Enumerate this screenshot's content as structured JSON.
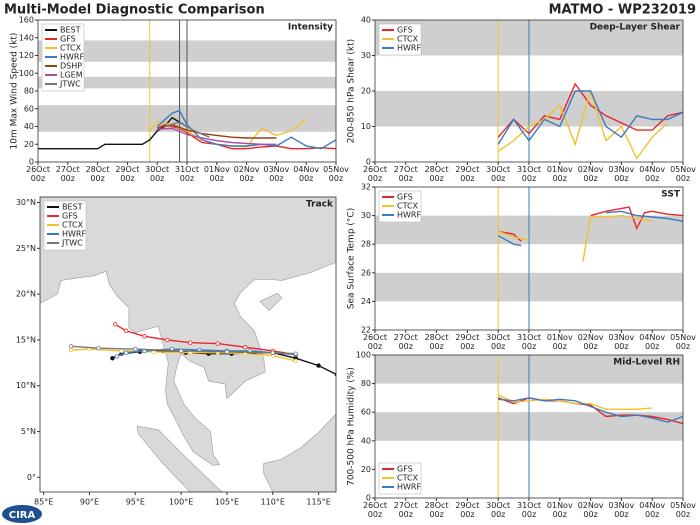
{
  "title": "Multi-Model Diagnostic Comparison",
  "storm": "MATMO - WP232019",
  "logo": "CIRA",
  "chart_data": [
    {
      "type": "line",
      "title": "Intensity",
      "ylabel": "10m Max Wind Speed (kt)",
      "xlim": [
        "26Oct 00z",
        "05Nov 00z"
      ],
      "xticks": [
        "26Oct 00z",
        "27Oct 00z",
        "28Oct 00z",
        "29Oct 00z",
        "30Oct 00z",
        "31Oct 00z",
        "01Nov 00z",
        "02Nov 00z",
        "03Nov 00z",
        "04Nov 00z",
        "05Nov 00z"
      ],
      "ylim": [
        0,
        160
      ],
      "yticks": [
        0,
        20,
        40,
        60,
        80,
        100,
        120,
        140,
        160
      ],
      "bands": [
        [
          34,
          64
        ],
        [
          83,
          96
        ],
        [
          113,
          137
        ]
      ],
      "legend": "upper left",
      "vlines": [
        {
          "x": "29Oct 18z",
          "color": "#f2c12e"
        },
        {
          "x": "30Oct 18z",
          "color": "#555555"
        },
        {
          "x": "31Oct 00z",
          "color": "#555555"
        }
      ],
      "series": [
        {
          "name": "BEST",
          "color": "#111111",
          "x": [
            "26Oct 00z",
            "27Oct 00z",
            "28Oct 00z",
            "28Oct 06z",
            "29Oct 12z",
            "29Oct 18z",
            "30Oct 00z",
            "30Oct 06z",
            "30Oct 12z",
            "30Oct 18z",
            "31Oct 00z"
          ],
          "values": [
            15,
            15,
            15,
            20,
            20,
            25,
            35,
            40,
            50,
            45,
            40
          ]
        },
        {
          "name": "GFS",
          "color": "#e8262a",
          "x": [
            "30Oct 00z",
            "30Oct 06z",
            "30Oct 12z",
            "30Oct 18z",
            "31Oct 00z",
            "31Oct 12z",
            "01Nov 00z",
            "01Nov 12z",
            "02Nov 00z",
            "02Nov 12z",
            "03Nov 00z",
            "03Nov 12z",
            "04Nov 00z",
            "04Nov 12z",
            "05Nov 00z"
          ],
          "values": [
            38,
            42,
            40,
            38,
            33,
            22,
            20,
            15,
            15,
            17,
            18,
            15,
            15,
            16,
            15
          ]
        },
        {
          "name": "CTCX",
          "color": "#f2c12e",
          "x": [
            "29Oct 18z",
            "30Oct 00z",
            "30Oct 12z",
            "31Oct 00z",
            "31Oct 12z",
            "01Nov 00z",
            "01Nov 12z",
            "02Nov 00z",
            "02Nov 12z",
            "03Nov 00z",
            "03Nov 12z",
            "04Nov 00z"
          ],
          "values": [
            35,
            45,
            42,
            35,
            25,
            20,
            18,
            17,
            38,
            30,
            35,
            48
          ]
        },
        {
          "name": "HWRF",
          "color": "#3b7bbf",
          "x": [
            "30Oct 00z",
            "30Oct 12z",
            "30Oct 18z",
            "31Oct 00z",
            "31Oct 12z",
            "01Nov 00z",
            "01Nov 12z",
            "02Nov 00z",
            "02Nov 12z",
            "03Nov 00z",
            "03Nov 12z",
            "04Nov 00z",
            "04Nov 12z",
            "05Nov 00z"
          ],
          "values": [
            40,
            55,
            58,
            42,
            25,
            20,
            18,
            18,
            20,
            18,
            28,
            18,
            15,
            25
          ]
        },
        {
          "name": "DSHP",
          "color": "#8b4513",
          "x": [
            "30Oct 00z",
            "30Oct 12z",
            "31Oct 00z",
            "31Oct 12z",
            "01Nov 00z",
            "01Nov 12z",
            "02Nov 00z",
            "02Nov 12z",
            "03Nov 00z"
          ],
          "values": [
            38,
            42,
            36,
            32,
            30,
            28,
            27,
            27,
            27
          ]
        },
        {
          "name": "LGEM",
          "color": "#b04aa0",
          "x": [
            "30Oct 00z",
            "30Oct 12z",
            "31Oct 00z",
            "31Oct 12z",
            "01Nov 00z",
            "01Nov 12z",
            "02Nov 00z",
            "02Nov 12z",
            "03Nov 00z"
          ],
          "values": [
            37,
            38,
            31,
            27,
            24,
            22,
            21,
            20,
            20
          ]
        },
        {
          "name": "JTWC",
          "color": "#777777",
          "x": [
            "30Oct 06z",
            "30Oct 18z",
            "31Oct 06z",
            "31Oct 18z"
          ],
          "values": [
            40,
            45,
            35,
            28
          ]
        }
      ]
    },
    {
      "type": "track",
      "title": "Track",
      "xlim": [
        84.6,
        116.9
      ],
      "ylim": [
        -1.6,
        30.6
      ],
      "legend": "upper left",
      "xticks": [
        {
          "value": 85,
          "label": "85°E"
        },
        {
          "value": 90,
          "label": "90°E"
        },
        {
          "value": 95,
          "label": "95°E"
        },
        {
          "value": 100,
          "label": "100°E"
        },
        {
          "value": 105,
          "label": "105°E"
        },
        {
          "value": 110,
          "label": "110°E"
        },
        {
          "value": 115,
          "label": "115°E"
        }
      ],
      "yticks": [
        {
          "value": 0,
          "label": "0°"
        },
        {
          "value": 5,
          "label": "5°N"
        },
        {
          "value": 10,
          "label": "10°N"
        },
        {
          "value": 15,
          "label": "15°N"
        },
        {
          "value": 20,
          "label": "20°N"
        },
        {
          "value": 25,
          "label": "25°N"
        },
        {
          "value": 30,
          "label": "30°N"
        }
      ],
      "series": [
        {
          "name": "BEST",
          "color": "#111111",
          "x": [
            117,
            115,
            112.5,
            110,
            108,
            105.5,
            103,
            100.5,
            98,
            95.5,
            93.5,
            92.5
          ],
          "values": [
            11.2,
            12.2,
            13,
            13.6,
            13.6,
            13.5,
            13.5,
            13.6,
            13.8,
            13.7,
            13.5,
            13
          ]
        },
        {
          "name": "GFS",
          "color": "#e8262a",
          "x": [
            112.5,
            110,
            107,
            104,
            101,
            98.5,
            96,
            94,
            92.8
          ],
          "values": [
            13.4,
            13.8,
            14.2,
            14.6,
            14.7,
            15,
            15.4,
            16,
            16.7
          ]
        },
        {
          "name": "CTCX",
          "color": "#f2c12e",
          "x": [
            112.5,
            110,
            107,
            104,
            101,
            97,
            93.5,
            90,
            88
          ],
          "values": [
            12.7,
            13.3,
            13.5,
            13.6,
            13.6,
            13.7,
            13.8,
            14,
            13.9
          ]
        },
        {
          "name": "HWRF",
          "color": "#3b7bbf",
          "x": [
            112.5,
            110,
            107.5,
            105,
            102,
            99,
            96,
            94,
            93
          ],
          "values": [
            13.4,
            13.6,
            13.8,
            13.8,
            13.9,
            14,
            13.8,
            13.6,
            13.2
          ]
        },
        {
          "name": "JTWC",
          "color": "#777777",
          "x": [
            112.5,
            110,
            105,
            100,
            95,
            91,
            88
          ],
          "values": [
            13.5,
            13.6,
            13.7,
            13.8,
            14,
            14.1,
            14.3
          ]
        }
      ]
    },
    {
      "type": "line",
      "title": "Deep-Layer Shear",
      "ylabel": "200-850 hPa Shear (kt)",
      "xlim": [
        "26Oct 00z",
        "05Nov 00z"
      ],
      "xticks": [
        "26Oct 00z",
        "27Oct 00z",
        "28Oct 00z",
        "29Oct 00z",
        "30Oct 00z",
        "31Oct 00z",
        "01Nov 00z",
        "02Nov 00z",
        "03Nov 00z",
        "04Nov 00z",
        "05Nov 00z"
      ],
      "ylim": [
        0,
        40
      ],
      "yticks": [
        0,
        10,
        20,
        30,
        40
      ],
      "bands": [
        [
          10,
          20
        ],
        [
          30,
          40
        ]
      ],
      "legend": "upper left",
      "vlines": [
        {
          "x": "30Oct 00z",
          "color": "#f2c12e"
        },
        {
          "x": "31Oct 00z",
          "color": "#3b7bbf"
        }
      ],
      "series": [
        {
          "name": "GFS",
          "color": "#e8262a",
          "x": [
            "30Oct 00z",
            "30Oct 12z",
            "31Oct 00z",
            "31Oct 12z",
            "01Nov 00z",
            "01Nov 12z",
            "02Nov 00z",
            "02Nov 12z",
            "03Nov 00z",
            "03Nov 12z",
            "04Nov 00z",
            "04Nov 12z",
            "05Nov 00z"
          ],
          "values": [
            7,
            12,
            8,
            13,
            12,
            22,
            16,
            13,
            11,
            9,
            9,
            13,
            14
          ]
        },
        {
          "name": "CTCX",
          "color": "#f2c12e",
          "x": [
            "30Oct 00z",
            "30Oct 12z",
            "31Oct 00z",
            "31Oct 12z",
            "01Nov 00z",
            "01Nov 12z",
            "02Nov 00z",
            "02Nov 12z",
            "03Nov 00z",
            "03Nov 12z",
            "04Nov 00z",
            "04Nov 12z"
          ],
          "values": [
            3,
            6,
            10,
            12,
            16,
            5,
            20,
            6,
            10,
            1,
            7,
            11
          ]
        },
        {
          "name": "HWRF",
          "color": "#3b7bbf",
          "x": [
            "30Oct 00z",
            "30Oct 12z",
            "31Oct 00z",
            "31Oct 12z",
            "01Nov 00z",
            "01Nov 12z",
            "02Nov 00z",
            "02Nov 12z",
            "03Nov 00z",
            "03Nov 12z",
            "04Nov 00z",
            "04Nov 12z",
            "05Nov 00z"
          ],
          "values": [
            5,
            12,
            6,
            12,
            10,
            20,
            20,
            10,
            7,
            13,
            12,
            12,
            14
          ]
        }
      ]
    },
    {
      "type": "line",
      "title": "SST",
      "ylabel": "Sea Surface Temp (°C)",
      "xlim": [
        "26Oct 00z",
        "05Nov 00z"
      ],
      "xticks": [
        "26Oct 00z",
        "27Oct 00z",
        "28Oct 00z",
        "29Oct 00z",
        "30Oct 00z",
        "31Oct 00z",
        "01Nov 00z",
        "02Nov 00z",
        "03Nov 00z",
        "04Nov 00z",
        "05Nov 00z"
      ],
      "ylim": [
        22,
        32
      ],
      "yticks": [
        22,
        24,
        26,
        28,
        30,
        32
      ],
      "bands": [
        [
          24,
          26
        ],
        [
          28,
          30
        ]
      ],
      "legend": "upper left",
      "vlines": [
        {
          "x": "30Oct 00z",
          "color": "#f2c12e"
        },
        {
          "x": "31Oct 00z",
          "color": "#3b7bbf"
        }
      ],
      "series": [
        {
          "name": "GFS",
          "color": "#e8262a",
          "x": [
            "30Oct 00z",
            "30Oct 06z",
            "30Oct 12z",
            "30Oct 18z",
            "31Oct 00z",
            "02Nov 00z",
            "02Nov 12z",
            "03Nov 00z",
            "03Nov 06z",
            "03Nov 12z",
            "03Nov 18z",
            "04Nov 00z",
            "04Nov 12z",
            "05Nov 00z"
          ],
          "values": [
            28.9,
            28.8,
            28.7,
            28.2,
            null,
            30.0,
            30.3,
            30.5,
            30.6,
            29.1,
            30.2,
            30.3,
            30.1,
            30.0
          ]
        },
        {
          "name": "CTCX",
          "color": "#f2c12e",
          "x": [
            "30Oct 00z",
            "30Oct 12z",
            "31Oct 00z",
            "01Nov 12z",
            "01Nov 18z",
            "02Nov 00z",
            "02Nov 12z",
            "03Nov 00z",
            "03Nov 12z",
            "04Nov 00z"
          ],
          "values": [
            28.9,
            28.5,
            28.3,
            null,
            26.8,
            29.9,
            29.9,
            30.0,
            29.8,
            29.6
          ]
        },
        {
          "name": "HWRF",
          "color": "#3b7bbf",
          "x": [
            "30Oct 00z",
            "30Oct 12z",
            "30Oct 18z",
            "01Nov 00z",
            "02Nov 12z",
            "03Nov 00z",
            "03Nov 12z",
            "04Nov 00z",
            "04Nov 12z",
            "05Nov 00z"
          ],
          "values": [
            28.6,
            28.0,
            27.9,
            null,
            30.2,
            30.3,
            30.0,
            29.9,
            29.8,
            29.6
          ]
        }
      ]
    },
    {
      "type": "line",
      "title": "Mid-Level RH",
      "ylabel": "700-500 hPa Humidity (%)",
      "xlim": [
        "26Oct 00z",
        "05Nov 00z"
      ],
      "xticks": [
        "26Oct 00z",
        "27Oct 00z",
        "28Oct 00z",
        "29Oct 00z",
        "30Oct 00z",
        "31Oct 00z",
        "01Nov 00z",
        "02Nov 00z",
        "03Nov 00z",
        "04Nov 00z",
        "05Nov 00z"
      ],
      "ylim": [
        0,
        100
      ],
      "yticks": [
        0,
        20,
        40,
        60,
        80,
        100
      ],
      "bands": [
        [
          40,
          60
        ],
        [
          80,
          100
        ]
      ],
      "legend": "lower left",
      "vlines": [
        {
          "x": "30Oct 00z",
          "color": "#f2c12e"
        },
        {
          "x": "31Oct 00z",
          "color": "#3b7bbf"
        }
      ],
      "series": [
        {
          "name": "GFS",
          "color": "#e8262a",
          "x": [
            "30Oct 00z",
            "30Oct 12z",
            "31Oct 00z",
            "31Oct 12z",
            "01Nov 00z",
            "01Nov 12z",
            "02Nov 00z",
            "02Nov 12z",
            "03Nov 00z",
            "03Nov 12z",
            "04Nov 00z",
            "04Nov 12z",
            "05Nov 00z"
          ],
          "values": [
            70,
            66,
            70,
            68,
            68,
            66,
            65,
            57,
            58,
            58,
            57,
            55,
            52
          ]
        },
        {
          "name": "CTCX",
          "color": "#f2c12e",
          "x": [
            "30Oct 00z",
            "30Oct 12z",
            "31Oct 00z",
            "31Oct 12z",
            "01Nov 00z",
            "01Nov 12z",
            "02Nov 00z",
            "02Nov 12z",
            "03Nov 00z",
            "03Nov 12z",
            "04Nov 00z"
          ],
          "values": [
            72,
            67,
            68,
            69,
            68,
            66,
            66,
            62,
            62,
            62,
            63
          ]
        },
        {
          "name": "HWRF",
          "color": "#3b7bbf",
          "x": [
            "30Oct 00z",
            "30Oct 12z",
            "31Oct 00z",
            "31Oct 12z",
            "01Nov 00z",
            "01Nov 12z",
            "02Nov 00z",
            "02Nov 12z",
            "03Nov 00z",
            "03Nov 12z",
            "04Nov 00z",
            "04Nov 12z",
            "05Nov 00z"
          ],
          "values": [
            69,
            68,
            70,
            68,
            69,
            68,
            64,
            60,
            57,
            58,
            56,
            53,
            57
          ]
        }
      ]
    }
  ]
}
